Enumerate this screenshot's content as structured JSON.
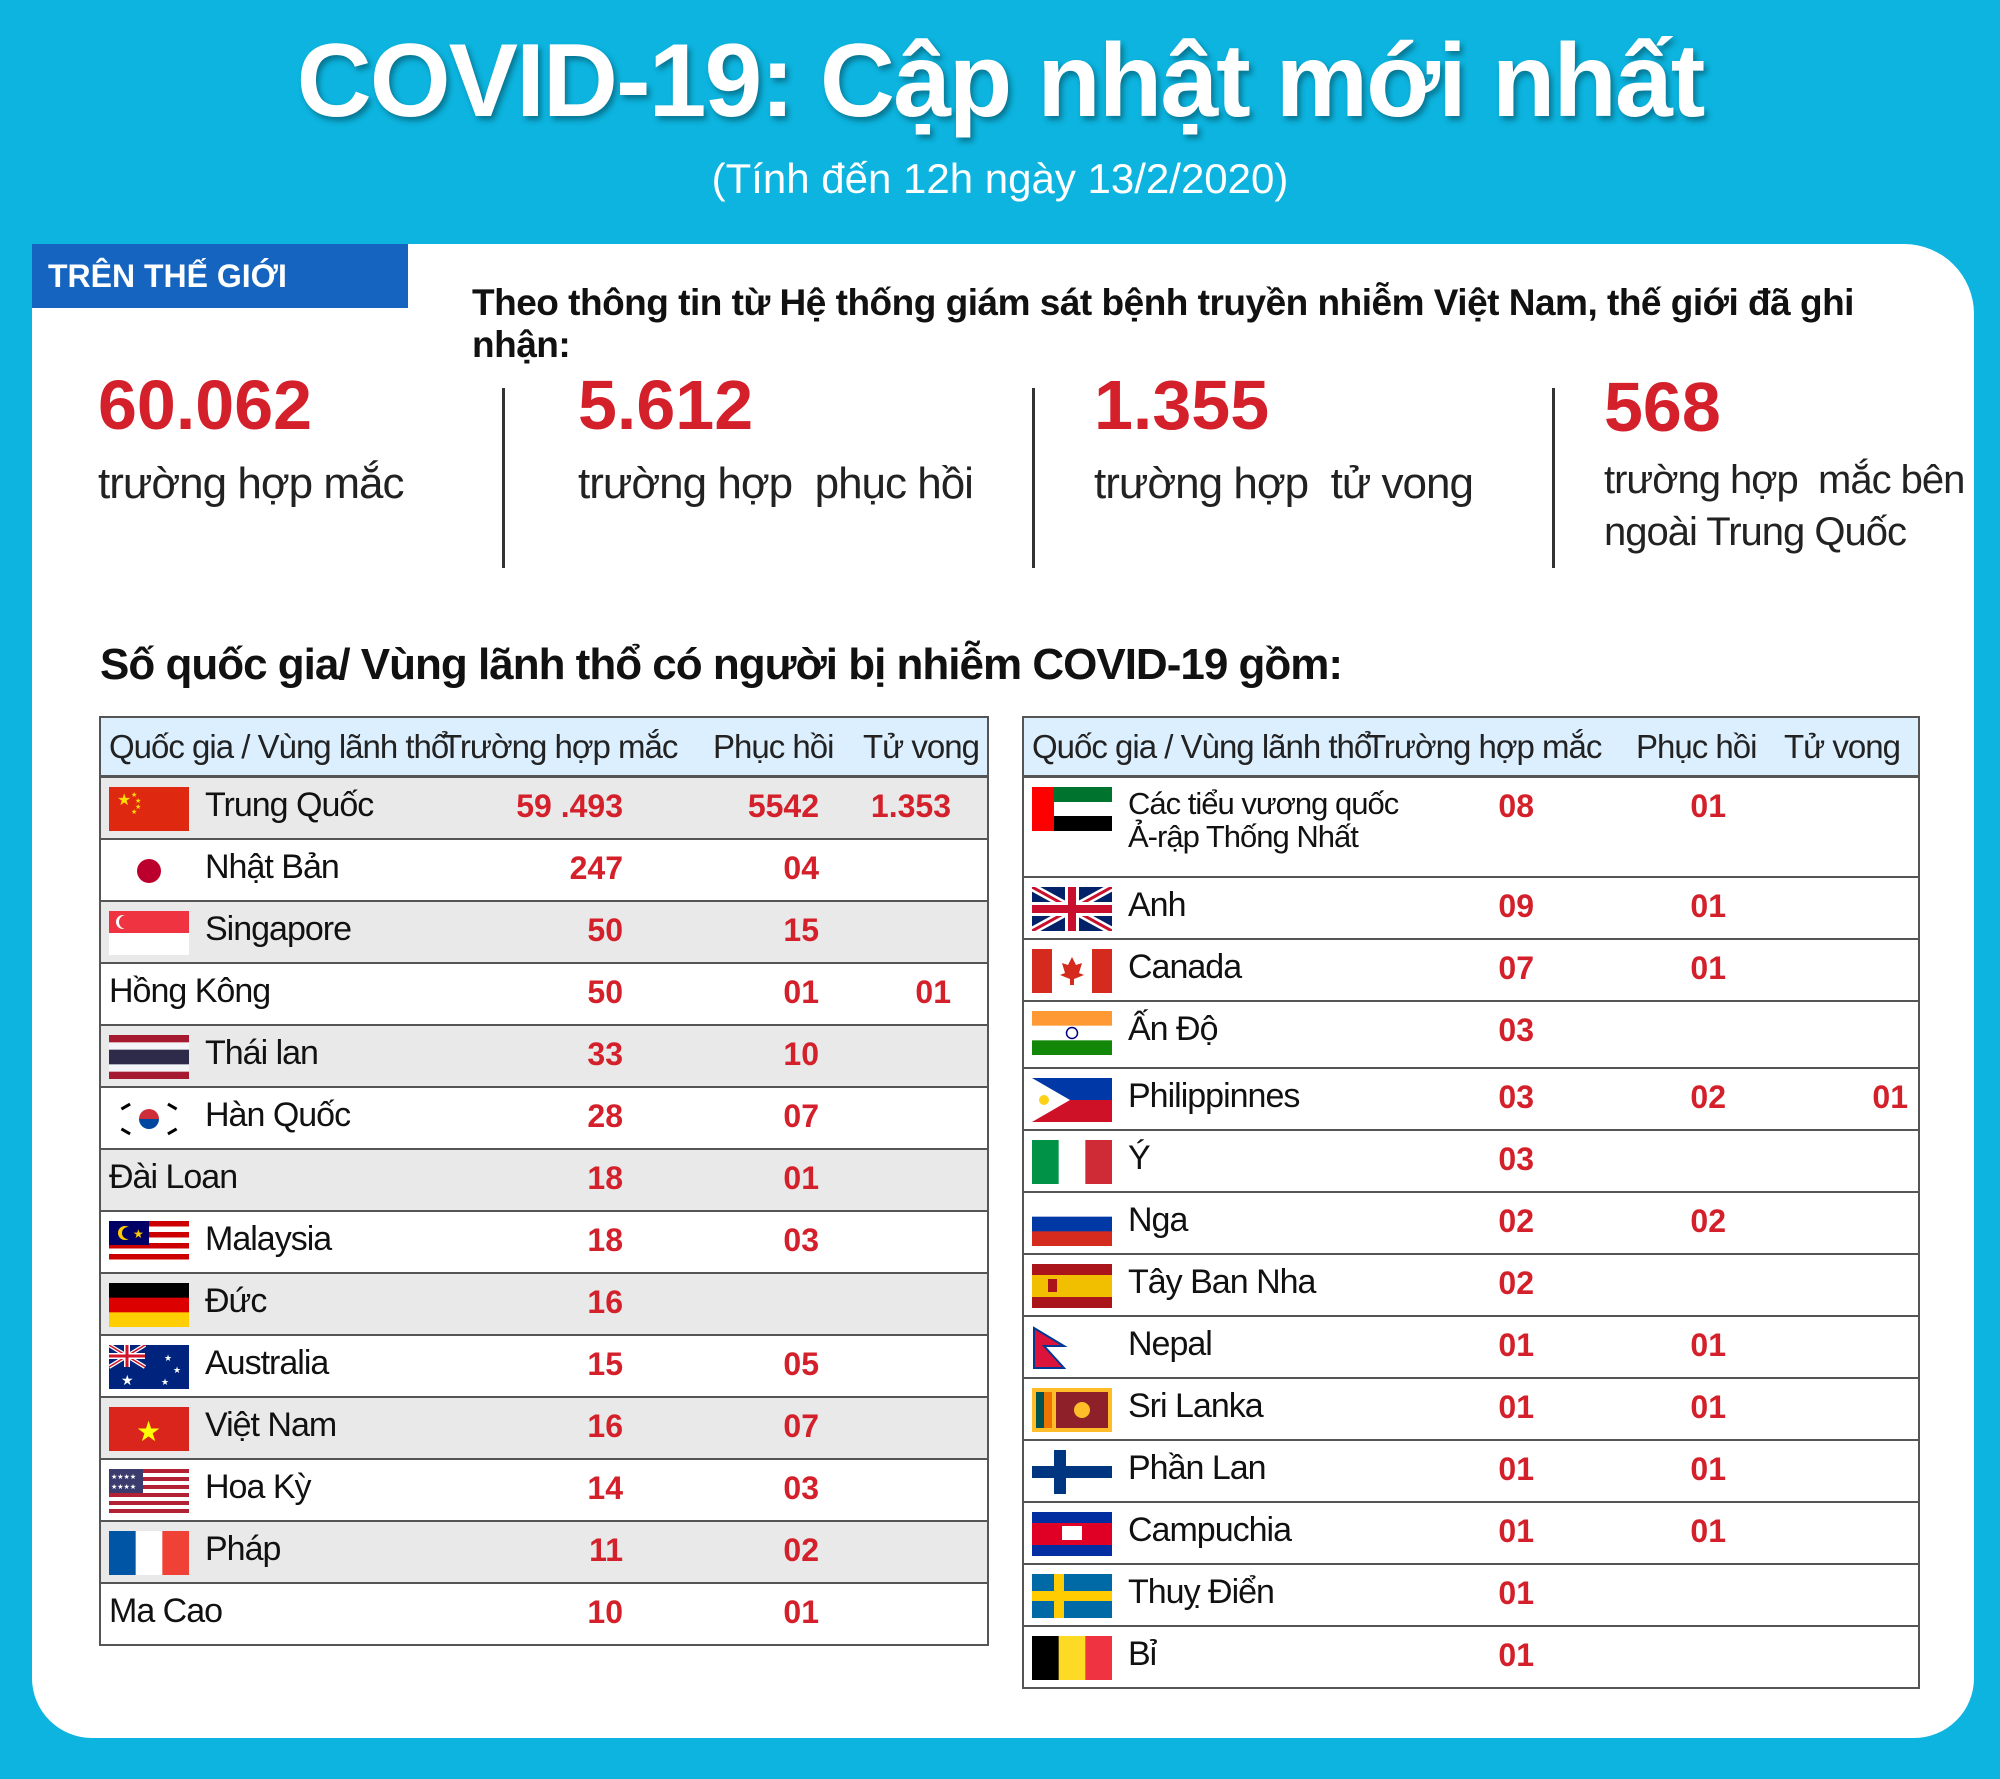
{
  "title": "COVID-19: Cập nhật mới nhất",
  "subtitle": "(Tính đến 12h ngày 13/2/2020)",
  "section_tag": "TRÊN THẾ GIỚI",
  "intro": "Theo thông tin từ Hệ thống giám sát bệnh truyền nhiễm Việt Nam, thế giới đã ghi nhận:",
  "stats": [
    {
      "value": "60.062",
      "label": "trường hợp mắc"
    },
    {
      "value": "5.612",
      "label": "trường hợp  phục hồi"
    },
    {
      "value": "1.355",
      "label": "trường hợp  tử vong"
    },
    {
      "value": "568",
      "label_line1": "trường hợp  mắc bên",
      "label_line2": "ngoài Trung Quốc"
    }
  ],
  "countries_title": "Số quốc gia/ Vùng lãnh thổ có người bị nhiễm COVID-19 gồm:",
  "table_headers": {
    "country": "Quốc gia / Vùng lãnh thổ",
    "cases": "Trường hợp mắc",
    "recovered": "Phục hồi",
    "deaths": "Tử vong"
  },
  "left_rows": [
    {
      "flag": "china-flag",
      "name": "Trung Quốc",
      "cases": "59 .493",
      "recovered": "5542",
      "deaths": "1.353"
    },
    {
      "flag": "japan-flag",
      "name": "Nhật Bản",
      "cases": "247",
      "recovered": "04",
      "deaths": ""
    },
    {
      "flag": "singapore-flag",
      "name": "Singapore",
      "cases": "50",
      "recovered": "15",
      "deaths": ""
    },
    {
      "flag": "",
      "name": "Hồng Kông",
      "cases": "50",
      "recovered": "01",
      "deaths": "01"
    },
    {
      "flag": "thailand-flag",
      "name": "Thái lan",
      "cases": "33",
      "recovered": "10",
      "deaths": ""
    },
    {
      "flag": "korea-flag",
      "name": "Hàn Quốc",
      "cases": "28",
      "recovered": "07",
      "deaths": ""
    },
    {
      "flag": "",
      "name": "Đài Loan",
      "cases": "18",
      "recovered": "01",
      "deaths": ""
    },
    {
      "flag": "malaysia-flag",
      "name": "Malaysia",
      "cases": "18",
      "recovered": "03",
      "deaths": ""
    },
    {
      "flag": "germany-flag",
      "name": "Đức",
      "cases": "16",
      "recovered": "",
      "deaths": ""
    },
    {
      "flag": "australia-flag",
      "name": "Australia",
      "cases": "15",
      "recovered": "05",
      "deaths": ""
    },
    {
      "flag": "vietnam-flag",
      "name": "Việt Nam",
      "cases": "16",
      "recovered": "07",
      "deaths": ""
    },
    {
      "flag": "usa-flag",
      "name": "Hoa Kỳ",
      "cases": "14",
      "recovered": "03",
      "deaths": ""
    },
    {
      "flag": "france-flag",
      "name": "Pháp",
      "cases": "11",
      "recovered": "02",
      "deaths": ""
    },
    {
      "flag": "",
      "name": "Ma Cao",
      "cases": "10",
      "recovered": "01",
      "deaths": ""
    }
  ],
  "right_rows": [
    {
      "flag": "uae-flag",
      "name": "Các tiểu vương quốc\nẢ-rập Thống Nhất",
      "cases": "08",
      "recovered": "01",
      "deaths": ""
    },
    {
      "flag": "uk-flag",
      "name": "Anh",
      "cases": "09",
      "recovered": "01",
      "deaths": ""
    },
    {
      "flag": "canada-flag",
      "name": "Canada",
      "cases": "07",
      "recovered": "01",
      "deaths": ""
    },
    {
      "flag": "india-flag",
      "name": "Ấn Độ",
      "cases": "03",
      "recovered": "",
      "deaths": ""
    },
    {
      "flag": "philippines-flag",
      "name": "Philippinnes",
      "cases": "03",
      "recovered": "02",
      "deaths": "01"
    },
    {
      "flag": "italy-flag",
      "name": "Ý",
      "cases": "03",
      "recovered": "",
      "deaths": ""
    },
    {
      "flag": "russia-flag",
      "name": "Nga",
      "cases": "02",
      "recovered": "02",
      "deaths": ""
    },
    {
      "flag": "spain-flag",
      "name": "Tây Ban Nha",
      "cases": "02",
      "recovered": "",
      "deaths": ""
    },
    {
      "flag": "nepal-flag",
      "name": "Nepal",
      "cases": "01",
      "recovered": "01",
      "deaths": ""
    },
    {
      "flag": "srilanka-flag",
      "name": "Sri Lanka",
      "cases": "01",
      "recovered": "01",
      "deaths": ""
    },
    {
      "flag": "finland-flag",
      "name": "Phần Lan",
      "cases": "01",
      "recovered": "01",
      "deaths": ""
    },
    {
      "flag": "cambodia-flag",
      "name": "Campuchia",
      "cases": "01",
      "recovered": "01",
      "deaths": ""
    },
    {
      "flag": "sweden-flag",
      "name": "Thuỵ Điển",
      "cases": "01",
      "recovered": "",
      "deaths": ""
    },
    {
      "flag": "belgium-flag",
      "name": "Bỉ",
      "cases": "01",
      "recovered": "",
      "deaths": ""
    }
  ]
}
